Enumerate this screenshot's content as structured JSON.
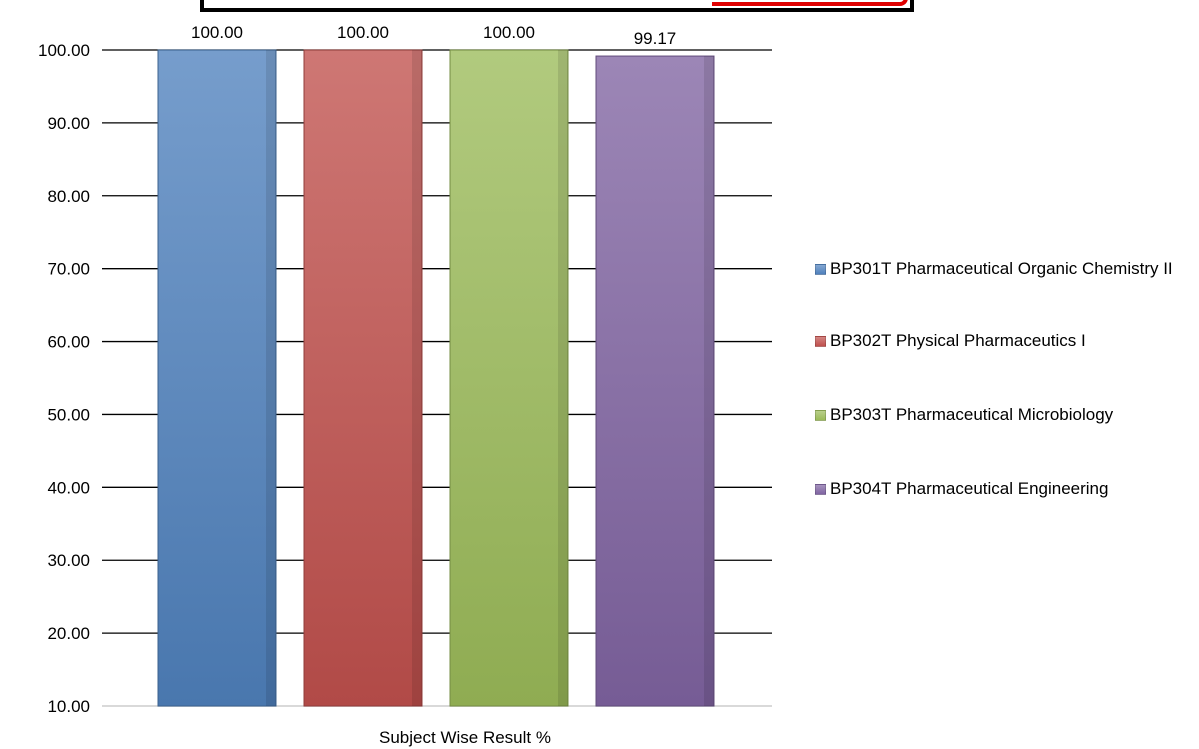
{
  "chart_data": {
    "type": "bar",
    "title": "",
    "xlabel": "Subject Wise Result %",
    "ylabel": "",
    "ylim": [
      10,
      100
    ],
    "yticks": [
      "10.00",
      "20.00",
      "30.00",
      "40.00",
      "50.00",
      "60.00",
      "70.00",
      "80.00",
      "90.00",
      "100.00"
    ],
    "grid": true,
    "legend_position": "right",
    "series": [
      {
        "name": "BP301T Pharmaceutical Organic Chemistry II",
        "value": 100.0,
        "label": "100.00",
        "color": "#4f81bd"
      },
      {
        "name": "BP302T Physical Pharmaceutics I",
        "value": 100.0,
        "label": "100.00",
        "color": "#c0504d"
      },
      {
        "name": "BP303T Pharmaceutical Microbiology",
        "value": 100.0,
        "label": "100.00",
        "color": "#9bbb59"
      },
      {
        "name": "BP304T Pharmaceutical Engineering",
        "value": 99.17,
        "label": "99.17",
        "color": "#8064a2"
      }
    ]
  }
}
